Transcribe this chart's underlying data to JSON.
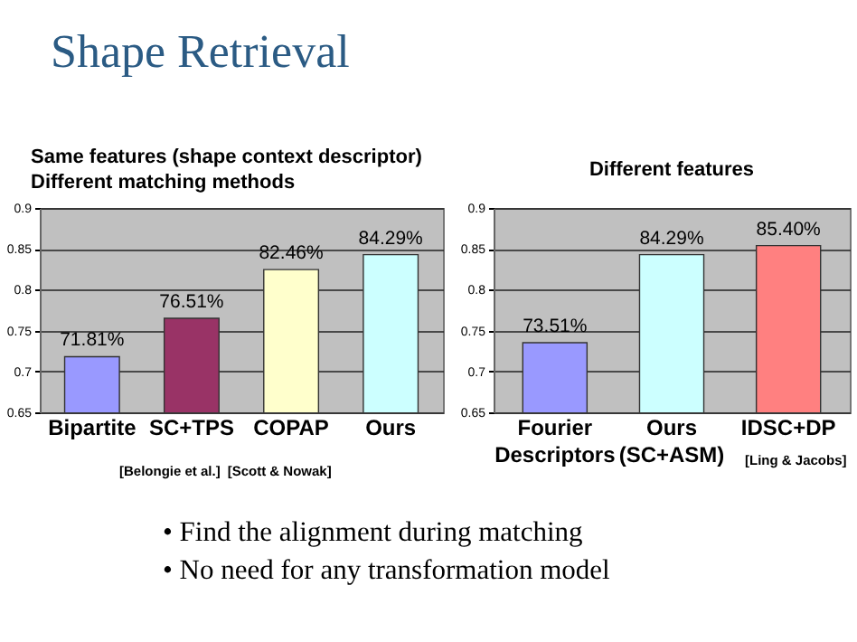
{
  "chart_data": [
    {
      "type": "other",
      "title": "Shape Retrieval"
    },
    {
      "type": "bar",
      "title": "Same features (shape context descriptor)",
      "subtitle": "Different matching methods",
      "categories": [
        "Bipartite",
        "SC+TPS",
        "COPAP",
        "Ours"
      ],
      "values": [
        0.7181,
        0.7651,
        0.8246,
        0.8429
      ],
      "value_labels": [
        "71.81%",
        "76.51%",
        "82.46%",
        "84.29%"
      ],
      "colors": [
        "#9999ff",
        "#993366",
        "#ffffcc",
        "#ccffff"
      ],
      "ylim": [
        0.65,
        0.9
      ],
      "yticks": [
        0.65,
        0.7,
        0.75,
        0.8,
        0.85,
        0.9
      ],
      "grid": "y",
      "annotations": [
        "[Belongie et al.]",
        "[Scott & Nowak]"
      ]
    },
    {
      "type": "bar",
      "title": "Different features",
      "categories": [
        "Fourier\nDescriptors",
        "Ours\n(SC+ASM)",
        "IDSC+DP"
      ],
      "values": [
        0.7351,
        0.8429,
        0.854
      ],
      "value_labels": [
        "73.51%",
        "84.29%",
        "85.40%"
      ],
      "colors": [
        "#9999ff",
        "#ccffff",
        "#ff8080"
      ],
      "ylim": [
        0.65,
        0.9
      ],
      "yticks": [
        0.65,
        0.7,
        0.75,
        0.8,
        0.85,
        0.9
      ],
      "grid": "y",
      "annotations": [
        "[Ling & Jacobs]"
      ]
    },
    {
      "type": "other",
      "annotations": [
        "• Find the alignment during matching",
        "• No need for any transformation model"
      ]
    }
  ]
}
